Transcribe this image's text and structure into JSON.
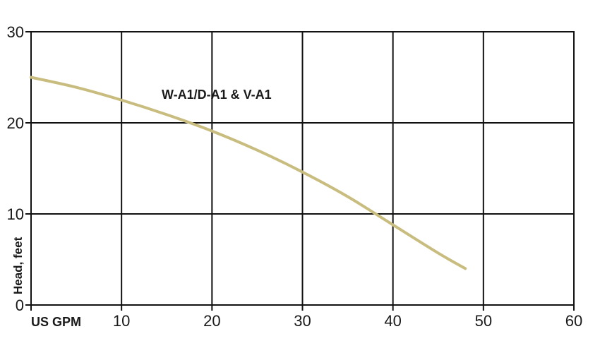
{
  "chart_data": {
    "type": "line",
    "title": "",
    "xlabel": "US GPM",
    "ylabel": "Head, feet",
    "xlim": [
      0,
      60
    ],
    "ylim": [
      0,
      30
    ],
    "x_ticks": [
      10,
      20,
      30,
      40,
      50,
      60
    ],
    "y_ticks": [
      0,
      10,
      20,
      30
    ],
    "grid": true,
    "series": [
      {
        "name": "W-A1/D-A1 & V-A1",
        "color": "#c8bd7e",
        "x": [
          0,
          5,
          10,
          15,
          20,
          25,
          30,
          35,
          40,
          45,
          48
        ],
        "y": [
          25.0,
          23.9,
          22.5,
          20.9,
          19.1,
          17.0,
          14.6,
          11.9,
          8.8,
          5.7,
          4.0
        ]
      }
    ]
  }
}
